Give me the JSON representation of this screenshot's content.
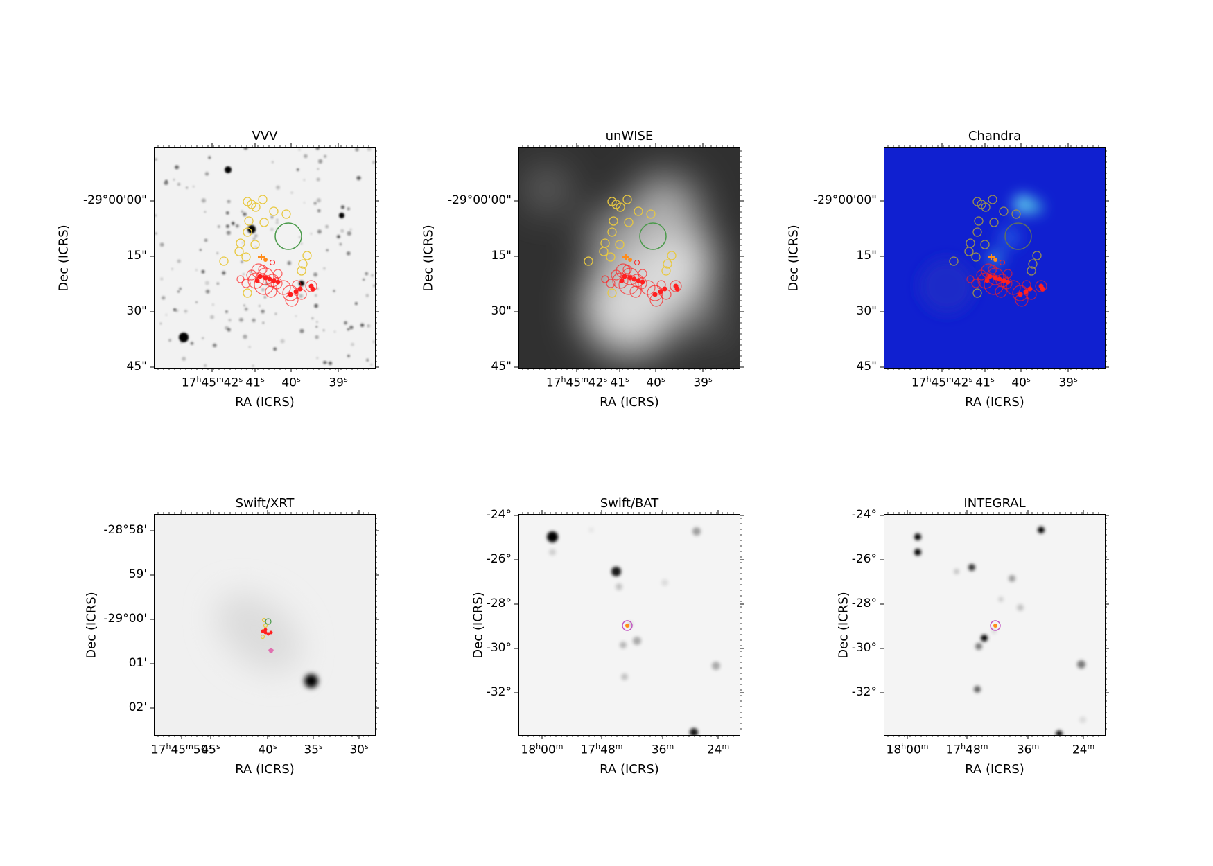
{
  "panels": [
    {
      "title": "VVV",
      "xlabel": "RA (ICRS)",
      "ylabel": "Dec (ICRS)",
      "yticks": [
        "-29°00'00\"",
        "15\"",
        "30\"",
        "45\""
      ],
      "xticks": [
        {
          "main": "17",
          "u1": "h",
          "mid": "45",
          "u2": "m",
          "end": "42",
          "u3": "s"
        },
        {
          "main": "41",
          "u3": "s"
        },
        {
          "main": "40",
          "u3": "s"
        },
        {
          "main": "39",
          "u3": "s"
        }
      ],
      "style": "optical-gray"
    },
    {
      "title": "unWISE",
      "xlabel": "RA (ICRS)",
      "ylabel": "Dec (ICRS)",
      "yticks": [
        "-29°00'00\"",
        "15\"",
        "30\"",
        "45\""
      ],
      "xticks": [
        {
          "main": "17",
          "u1": "h",
          "mid": "45",
          "u2": "m",
          "end": "42",
          "u3": "s"
        },
        {
          "main": "41",
          "u3": "s"
        },
        {
          "main": "40",
          "u3": "s"
        },
        {
          "main": "39",
          "u3": "s"
        }
      ],
      "style": "infrared-gray"
    },
    {
      "title": "Chandra",
      "xlabel": "RA (ICRS)",
      "ylabel": "Dec (ICRS)",
      "yticks": [
        "-29°00'00\"",
        "15\"",
        "30\"",
        "45\""
      ],
      "xticks": [
        {
          "main": "17",
          "u1": "h",
          "mid": "45",
          "u2": "m",
          "end": "42",
          "u3": "s"
        },
        {
          "main": "41",
          "u3": "s"
        },
        {
          "main": "40",
          "u3": "s"
        },
        {
          "main": "39",
          "u3": "s"
        }
      ],
      "style": "xray-blue"
    },
    {
      "title": "Swift/XRT",
      "xlabel": "RA (ICRS)",
      "ylabel": "Dec (ICRS)",
      "yticks": [
        "-28°58'",
        "59'",
        "-29°00'",
        "01'",
        "02'"
      ],
      "xticks": [
        {
          "main": "17",
          "u1": "h",
          "mid": "45",
          "u2": "m",
          "end": "50",
          "u3": "s"
        },
        {
          "main": "45",
          "u3": "s"
        },
        {
          "main": "40",
          "u3": "s"
        },
        {
          "main": "35",
          "u3": "s"
        },
        {
          "main": "30",
          "u3": "s"
        }
      ],
      "style": "xrt"
    },
    {
      "title": "Swift/BAT",
      "xlabel": "RA (ICRS)",
      "ylabel": "Dec (ICRS)",
      "yticks": [
        "-24°",
        "-26°",
        "-28°",
        "-30°",
        "-32°"
      ],
      "xticks": [
        {
          "main": "18",
          "u1": "h",
          "mid": "00",
          "u2": "m"
        },
        {
          "main": "17",
          "u1": "h",
          "mid": "48",
          "u2": "m"
        },
        {
          "main": "36",
          "u2": "m"
        },
        {
          "main": "24",
          "u2": "m"
        }
      ],
      "style": "hard-xray"
    },
    {
      "title": "INTEGRAL",
      "xlabel": "RA (ICRS)",
      "ylabel": "Dec (ICRS)",
      "yticks": [
        "-24°",
        "-26°",
        "-28°",
        "-30°",
        "-32°"
      ],
      "xticks": [
        {
          "main": "18",
          "u1": "h",
          "mid": "00",
          "u2": "m"
        },
        {
          "main": "17",
          "u1": "h",
          "mid": "48",
          "u2": "m"
        },
        {
          "main": "36",
          "u2": "m"
        },
        {
          "main": "24",
          "u2": "m"
        }
      ],
      "style": "gamma"
    }
  ],
  "colors": {
    "red_markers": "#ff2020",
    "yellow_markers": "#e8c840",
    "green_marker": "#4a9a4a",
    "orange_marker": "#ff8c1a",
    "magenta_marker": "#c050c0",
    "pink_marker": "#e070b0",
    "chandra_bg": "#1020d0"
  }
}
